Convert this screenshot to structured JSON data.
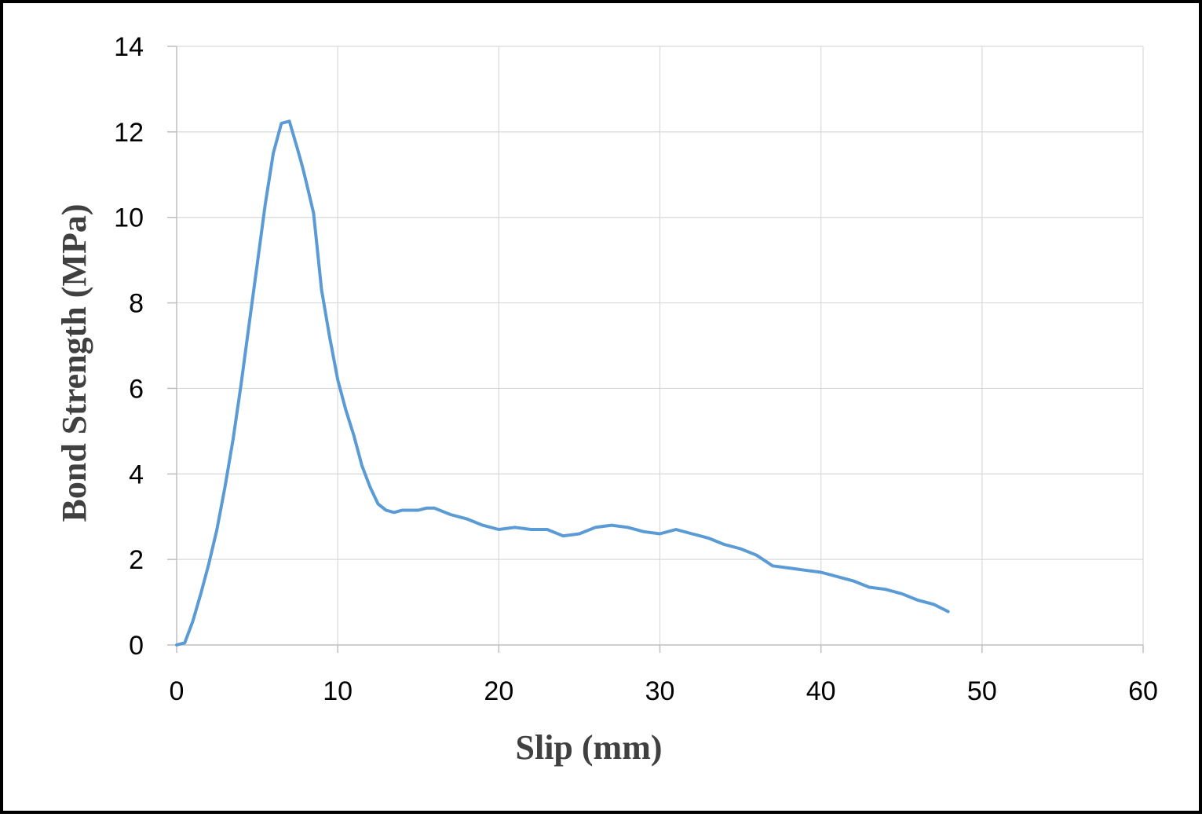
{
  "chart_data": {
    "type": "line",
    "title": "",
    "xlabel": "Slip (mm)",
    "ylabel": "Bond Strength (MPa)",
    "xlim": [
      0,
      60
    ],
    "ylim": [
      0,
      14
    ],
    "xticks": [
      0,
      10,
      20,
      30,
      40,
      50,
      60
    ],
    "yticks": [
      0,
      2,
      4,
      6,
      8,
      10,
      12,
      14
    ],
    "grid": true,
    "legend": "none",
    "colors": {
      "series": "#5b9bd5",
      "grid": "#d9d9d9",
      "axis": "#bfbfbf"
    },
    "series": [
      {
        "x": [
          0,
          0.5,
          1.0,
          1.5,
          2.0,
          2.5,
          3.0,
          3.5,
          4.0,
          4.5,
          5.0,
          5.5,
          6.0,
          6.5,
          7.0,
          7.5,
          7.8,
          8.0,
          8.5,
          9.0,
          9.5,
          10.0,
          10.5,
          11.0,
          11.5,
          12.0,
          12.5,
          13.0,
          13.5,
          14.0,
          15.0,
          15.5,
          16.0,
          17.0,
          18.0,
          19.0,
          20.0,
          21.0,
          22.0,
          23.0,
          24.0,
          25.0,
          26.0,
          27.0,
          28.0,
          29.0,
          30.0,
          31.0,
          32.0,
          33.0,
          34.0,
          35.0,
          36.0,
          37.0,
          38.0,
          39.0,
          40.0,
          41.0,
          42.0,
          43.0,
          44.0,
          45.0,
          46.0,
          47.0,
          47.9
        ],
        "y": [
          0,
          0.05,
          0.55,
          1.2,
          1.9,
          2.7,
          3.7,
          4.8,
          6.1,
          7.5,
          8.9,
          10.3,
          11.5,
          12.2,
          12.25,
          11.6,
          11.2,
          10.9,
          10.1,
          8.3,
          7.2,
          6.2,
          5.5,
          4.9,
          4.2,
          3.7,
          3.3,
          3.15,
          3.1,
          3.15,
          3.15,
          3.2,
          3.2,
          3.05,
          2.95,
          2.8,
          2.7,
          2.75,
          2.7,
          2.7,
          2.55,
          2.6,
          2.75,
          2.8,
          2.75,
          2.65,
          2.6,
          2.7,
          2.6,
          2.5,
          2.35,
          2.25,
          2.1,
          1.85,
          1.8,
          1.75,
          1.7,
          1.6,
          1.5,
          1.35,
          1.3,
          1.2,
          1.05,
          0.95,
          0.78
        ]
      }
    ]
  }
}
